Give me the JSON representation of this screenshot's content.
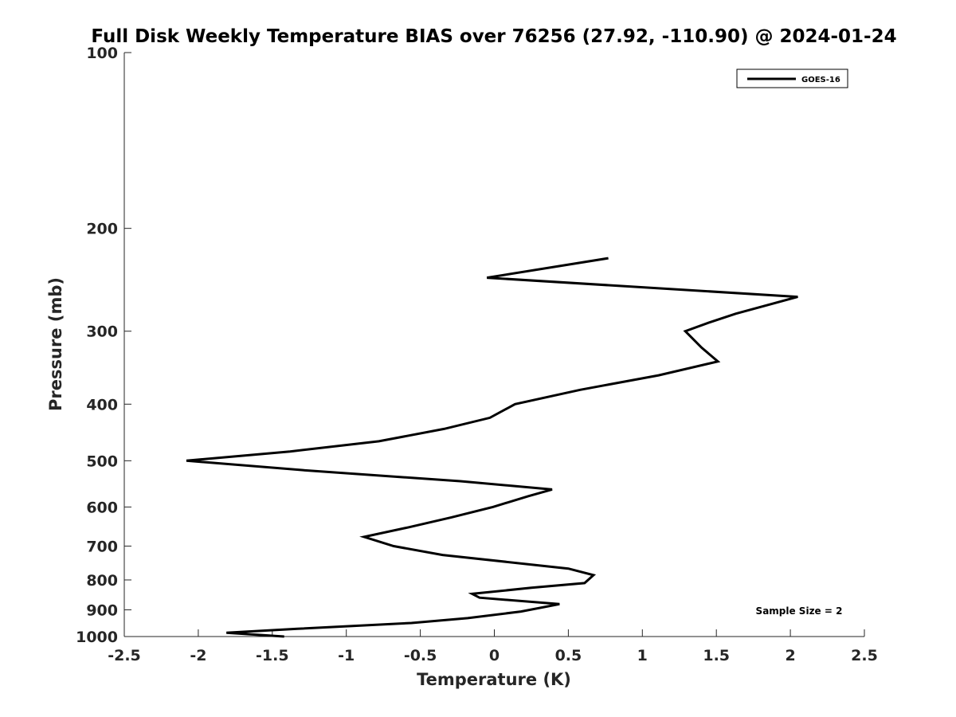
{
  "chart_data": {
    "type": "line",
    "title": "Full Disk Weekly Temperature BIAS over 76256 (27.92, -110.90) @ 2024-01-24",
    "xlabel": "Temperature (K)",
    "ylabel": "Pressure (mb)",
    "xlim": [
      -2.5,
      2.5
    ],
    "ylim": [
      100,
      1000
    ],
    "y_scale": "log",
    "y_reversed": true,
    "grid": false,
    "legend_position": "top-right",
    "x_ticks": [
      -2.5,
      -2,
      -1.5,
      -1,
      -0.5,
      0,
      0.5,
      1,
      1.5,
      2,
      2.5
    ],
    "x_tick_labels": [
      "-2.5",
      "-2",
      "-1.5",
      "-1",
      "-0.5",
      "0",
      "0.5",
      "1",
      "1.5",
      "2",
      "2.5"
    ],
    "y_ticks": [
      100,
      200,
      300,
      400,
      500,
      600,
      700,
      800,
      900,
      1000
    ],
    "y_tick_labels": [
      "100",
      "200",
      "300",
      "400",
      "500",
      "600",
      "700",
      "800",
      "900",
      "1000"
    ],
    "annotation": "Sample Size = 2",
    "series": [
      {
        "name": "GOES-16",
        "color": "#000000",
        "x": [
          0.77,
          -0.05,
          2.05,
          1.63,
          1.45,
          1.29,
          1.4,
          1.51,
          1.11,
          0.58,
          0.14,
          -0.03,
          -0.34,
          -0.78,
          -1.38,
          -2.08,
          -1.25,
          -0.23,
          0.39,
          0.23,
          -0.01,
          -0.29,
          -0.58,
          -0.88,
          -0.68,
          -0.35,
          0.5,
          0.67,
          0.61,
          0.25,
          -0.15,
          -0.1,
          0.44,
          0.18,
          -0.18,
          -0.56,
          -1.33,
          -1.81,
          -1.42
        ],
        "y": [
          225,
          243,
          262,
          280,
          290,
          300,
          320,
          338,
          357,
          378,
          400,
          422,
          441,
          463,
          482,
          500,
          520,
          542,
          560,
          575,
          600,
          625,
          650,
          675,
          700,
          725,
          765,
          785,
          810,
          825,
          845,
          858,
          880,
          906,
          930,
          948,
          970,
          985,
          1000
        ]
      }
    ]
  }
}
